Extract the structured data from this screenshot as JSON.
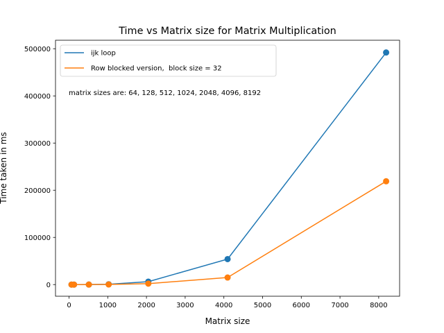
{
  "chart_data": {
    "type": "line",
    "title": "Time vs Matrix size for Matrix Multiplication",
    "xlabel": "Matrix size",
    "ylabel": "Time taken in ms",
    "annotation": "matrix sizes are: 64, 128, 512, 1024, 2048, 4096, 8192",
    "xlim": [
      -350,
      8540
    ],
    "ylim": [
      -24700,
      518000
    ],
    "xticks": [
      0,
      1000,
      2000,
      3000,
      4000,
      5000,
      6000,
      7000,
      8000
    ],
    "yticks": [
      0,
      100000,
      200000,
      300000,
      400000,
      500000
    ],
    "legend_position": "top-left",
    "grid": false,
    "x": [
      64,
      128,
      512,
      1024,
      2048,
      4096,
      8192
    ],
    "series": [
      {
        "name": "ijk loop",
        "color": "#1f77b4",
        "marker": "circle",
        "values": [
          1,
          5,
          80,
          700,
          6200,
          54000,
          492000
        ]
      },
      {
        "name": "Row blocked version,  block size = 32",
        "color": "#ff7f0e",
        "marker": "circle",
        "values": [
          1,
          3,
          40,
          250,
          2000,
          15000,
          219000
        ]
      }
    ]
  }
}
